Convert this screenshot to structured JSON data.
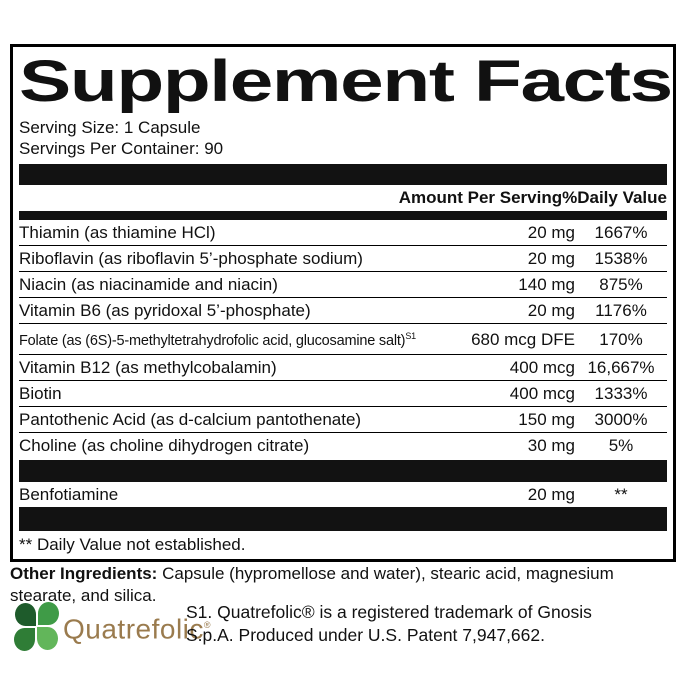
{
  "title": "Supplement Facts",
  "serving": {
    "size": "Serving Size: 1 Capsule",
    "per_container": "Servings Per Container: 90"
  },
  "header": {
    "amount": "Amount Per Serving",
    "daily_value": "%Daily Value"
  },
  "rows": [
    {
      "name": "Thiamin (as thiamine HCl)",
      "amount": "20 mg",
      "dv": "1667%"
    },
    {
      "name": "Riboflavin (as riboflavin 5’-phosphate sodium)",
      "amount": "20 mg",
      "dv": "1538%"
    },
    {
      "name": "Niacin (as niacinamide and niacin)",
      "amount": "140 mg",
      "dv": "875%"
    },
    {
      "name": "Vitamin B6 (as pyridoxal 5’-phosphate)",
      "amount": "20 mg",
      "dv": "1176%"
    },
    {
      "name": "Folate (as (6S)-5-methyltetrahydrofolic acid, glucosamine salt)",
      "sup": "S1",
      "amount": "680 mcg DFE",
      "dv": "170%"
    },
    {
      "name": "Vitamin B12 (as methylcobalamin)",
      "amount": "400 mcg",
      "dv": "16,667%"
    },
    {
      "name": "Biotin",
      "amount": "400 mcg",
      "dv": "1333%"
    },
    {
      "name": "Pantothenic Acid (as d-calcium pantothenate)",
      "amount": "150 mg",
      "dv": "3000%"
    },
    {
      "name": "Choline (as choline dihydrogen citrate)",
      "amount": "30 mg",
      "dv": "5%"
    }
  ],
  "extra_row": {
    "name": "Benfotiamine",
    "amount": "20 mg",
    "dv": "**"
  },
  "footnote": "** Daily Value not established.",
  "other_ingredients": {
    "label": "Other Ingredients:",
    "text": " Capsule (hypromellose and water), stearic acid, magnesium stearate, and silica."
  },
  "brand": {
    "logo_text": "Quatrefolic",
    "registered_mark": "®",
    "note_line1": "S1. Quatrefolic® is a registered trademark of Gnosis",
    "note_line2": "S.p.A. Produced under U.S. Patent 7,947,662."
  },
  "colors": {
    "bar_black": "#121212",
    "leaf_dark_green": "#1e5b2b",
    "leaf_green": "#3f9b47",
    "leaf_mid_green": "#2f7d36",
    "leaf_light_green": "#62b65a",
    "brand_tan": "#9a7b4e"
  }
}
